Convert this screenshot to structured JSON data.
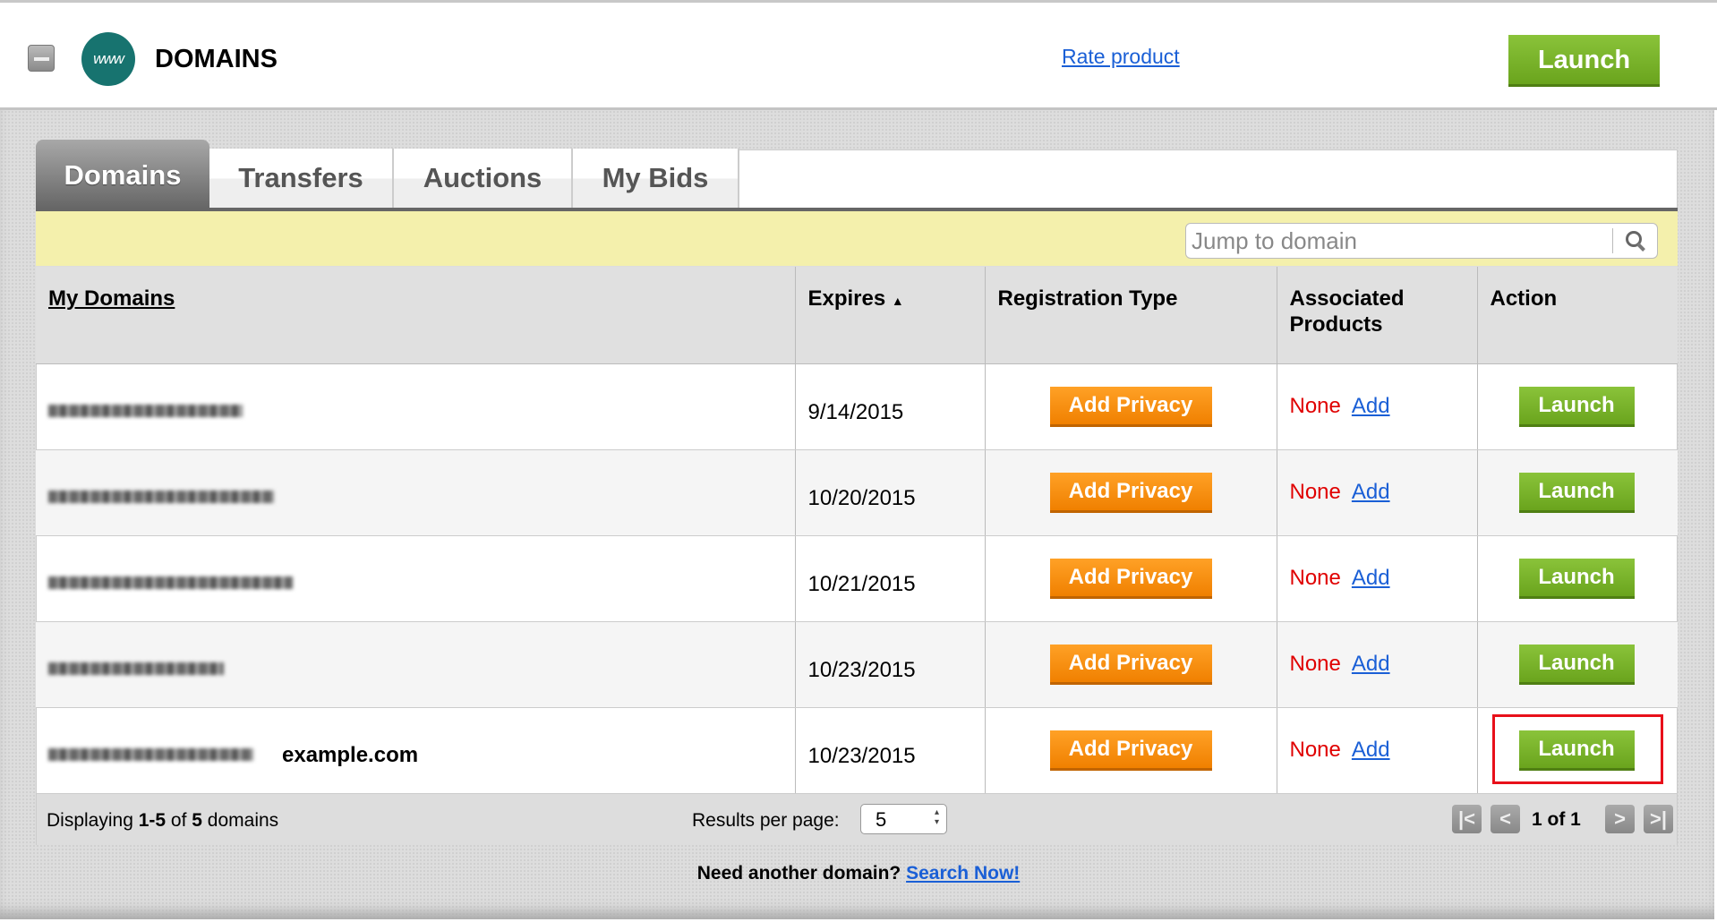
{
  "header": {
    "title": "DOMAINS",
    "logo_text": "www",
    "rate_link": "Rate product",
    "launch_label": "Launch",
    "icons": {
      "collapse": "minus-icon",
      "logo": "www-globe-icon"
    }
  },
  "tabs": [
    {
      "label": "Domains",
      "active": true
    },
    {
      "label": "Transfers"
    },
    {
      "label": "Auctions"
    },
    {
      "label": "My Bids"
    }
  ],
  "search": {
    "placeholder": "Jump to domain",
    "value": "",
    "icon": "search-icon"
  },
  "table": {
    "columns": [
      "My Domains",
      "Expires",
      "Registration Type",
      "Associated Products",
      "Action"
    ],
    "sort": {
      "column": "Expires",
      "direction": "ascending"
    },
    "rows": [
      {
        "domain_blurred": true,
        "annotation": "",
        "expires": "9/14/2015",
        "registration": "Add Privacy",
        "products": "None",
        "products_link": "Add",
        "action": "Launch"
      },
      {
        "domain_blurred": true,
        "annotation": "",
        "expires": "10/20/2015",
        "registration": "Add Privacy",
        "products": "None",
        "products_link": "Add",
        "action": "Launch"
      },
      {
        "domain_blurred": true,
        "annotation": "",
        "expires": "10/21/2015",
        "registration": "Add Privacy",
        "products": "None",
        "products_link": "Add",
        "action": "Launch"
      },
      {
        "domain_blurred": true,
        "annotation": "",
        "expires": "10/23/2015",
        "registration": "Add Privacy",
        "products": "None",
        "products_link": "Add",
        "action": "Launch"
      },
      {
        "domain_blurred": true,
        "annotation": "example.com",
        "expires": "10/23/2015",
        "registration": "Add Privacy",
        "products": "None",
        "products_link": "Add",
        "action": "Launch",
        "highlighted": true
      }
    ]
  },
  "footer": {
    "displaying_prefix": "Displaying ",
    "displaying_range": "1-5",
    "displaying_of": " of ",
    "displaying_total": "5",
    "displaying_suffix": " domains",
    "results_label": "Results per page:",
    "results_value": "5",
    "page_text": "1 of 1",
    "pager_icons": [
      "first-page-icon",
      "prev-page-icon",
      "next-page-icon",
      "last-page-icon"
    ]
  },
  "bottom": {
    "text": "Need another domain? ",
    "link": "Search Now!"
  },
  "colors": {
    "launch_green": "#7ab52b",
    "privacy_orange": "#f58a0a",
    "highlight_red": "#e8101a",
    "search_bar_yellow": "#f4f0ac",
    "logo_teal": "#17736f"
  }
}
